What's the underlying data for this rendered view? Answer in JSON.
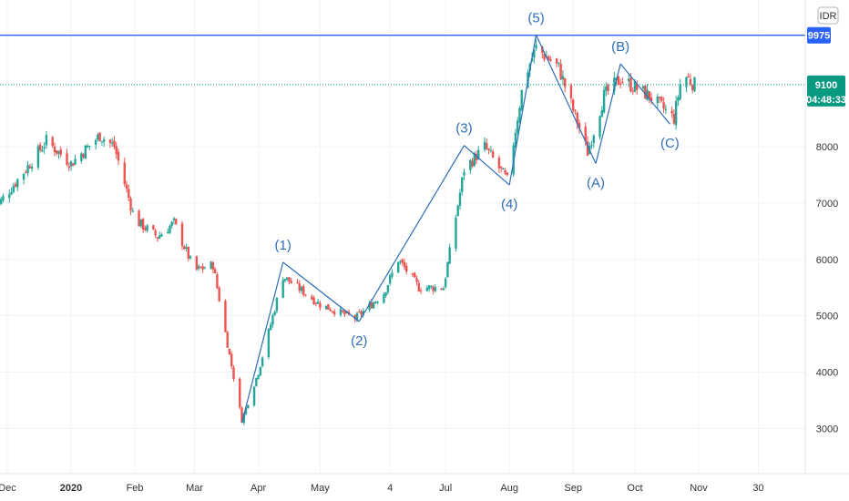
{
  "currency_button": "IDR",
  "colors": {
    "up": "#26a69a",
    "down": "#ef5350",
    "wave": "#2e6fb7",
    "resistance": "#2962ff",
    "last_price": "#089981",
    "grid": "#f0f3fa"
  },
  "chart_data": {
    "type": "candlestick",
    "y_axis": {
      "min": 2200,
      "max": 10600,
      "ticks": [
        3000,
        4000,
        5000,
        6000,
        7000,
        8000
      ]
    },
    "x_axis": {
      "tick_labels": [
        {
          "label": "Dec",
          "date": "2019-12-01",
          "bold": false
        },
        {
          "label": "2020",
          "date": "2020-01-01",
          "bold": true
        },
        {
          "label": "Feb",
          "date": "2020-02-01",
          "bold": false
        },
        {
          "label": "Mar",
          "date": "2020-03-01",
          "bold": false
        },
        {
          "label": "Apr",
          "date": "2020-04-01",
          "bold": false
        },
        {
          "label": "May",
          "date": "2020-05-01",
          "bold": false
        },
        {
          "label": "4",
          "date": "2020-06-04",
          "bold": false
        },
        {
          "label": "Jul",
          "date": "2020-07-01",
          "bold": false
        },
        {
          "label": "Aug",
          "date": "2020-08-01",
          "bold": false
        },
        {
          "label": "Sep",
          "date": "2020-09-01",
          "bold": false
        },
        {
          "label": "Oct",
          "date": "2020-10-01",
          "bold": false
        },
        {
          "label": "Nov",
          "date": "2020-11-01",
          "bold": false
        },
        {
          "label": "30",
          "date": "2020-11-30",
          "bold": false
        }
      ]
    },
    "price_series": [
      {
        "date": "2019-11-25",
        "close": 6900
      },
      {
        "date": "2019-12-10",
        "close": 7600
      },
      {
        "date": "2019-12-20",
        "close": 8100
      },
      {
        "date": "2020-01-01",
        "close": 7700
      },
      {
        "date": "2020-01-15",
        "close": 8200
      },
      {
        "date": "2020-01-22",
        "close": 8000
      },
      {
        "date": "2020-02-01",
        "close": 6700
      },
      {
        "date": "2020-02-12",
        "close": 6400
      },
      {
        "date": "2020-02-20",
        "close": 6650
      },
      {
        "date": "2020-03-01",
        "close": 5800
      },
      {
        "date": "2020-03-10",
        "close": 5900
      },
      {
        "date": "2020-03-18",
        "close": 4300
      },
      {
        "date": "2020-03-24",
        "close": 3150
      },
      {
        "date": "2020-04-01",
        "close": 4000
      },
      {
        "date": "2020-04-13",
        "close": 5700
      },
      {
        "date": "2020-05-01",
        "close": 5200
      },
      {
        "date": "2020-05-18",
        "close": 4950
      },
      {
        "date": "2020-06-01",
        "close": 5400
      },
      {
        "date": "2020-06-08",
        "close": 6000
      },
      {
        "date": "2020-06-18",
        "close": 5500
      },
      {
        "date": "2020-06-30",
        "close": 5500
      },
      {
        "date": "2020-07-10",
        "close": 7600
      },
      {
        "date": "2020-07-20",
        "close": 8000
      },
      {
        "date": "2020-07-31",
        "close": 7400
      },
      {
        "date": "2020-08-08",
        "close": 9200
      },
      {
        "date": "2020-08-14",
        "close": 9750
      },
      {
        "date": "2020-08-25",
        "close": 9400
      },
      {
        "date": "2020-09-08",
        "close": 7900
      },
      {
        "date": "2020-09-16",
        "close": 8900
      },
      {
        "date": "2020-09-24",
        "close": 9200
      },
      {
        "date": "2020-10-08",
        "close": 8900
      },
      {
        "date": "2020-10-20",
        "close": 8500
      },
      {
        "date": "2020-10-24",
        "close": 9300
      },
      {
        "date": "2020-10-30",
        "close": 9100
      }
    ],
    "wave_path": [
      {
        "date": "2020-03-24",
        "price": 3100,
        "label": ""
      },
      {
        "date": "2020-04-13",
        "price": 5950,
        "label": "(1)"
      },
      {
        "date": "2020-05-20",
        "price": 4900,
        "label": "(2)"
      },
      {
        "date": "2020-07-10",
        "price": 8020,
        "label": "(3)"
      },
      {
        "date": "2020-08-01",
        "price": 7320,
        "label": "(4)"
      },
      {
        "date": "2020-08-14",
        "price": 9980,
        "label": "(5)"
      },
      {
        "date": "2020-09-12",
        "price": 7700,
        "label": "(A)"
      },
      {
        "date": "2020-09-24",
        "price": 9470,
        "label": "(B)"
      },
      {
        "date": "2020-10-18",
        "price": 8400,
        "label": "(C)"
      }
    ],
    "horizontal_lines": [
      {
        "name": "resistance",
        "price": 9975,
        "label": "9975"
      },
      {
        "name": "last-price",
        "price": 9100,
        "label": "9100",
        "countdown": "04:48:33"
      }
    ],
    "legend": "none",
    "grid": true
  }
}
